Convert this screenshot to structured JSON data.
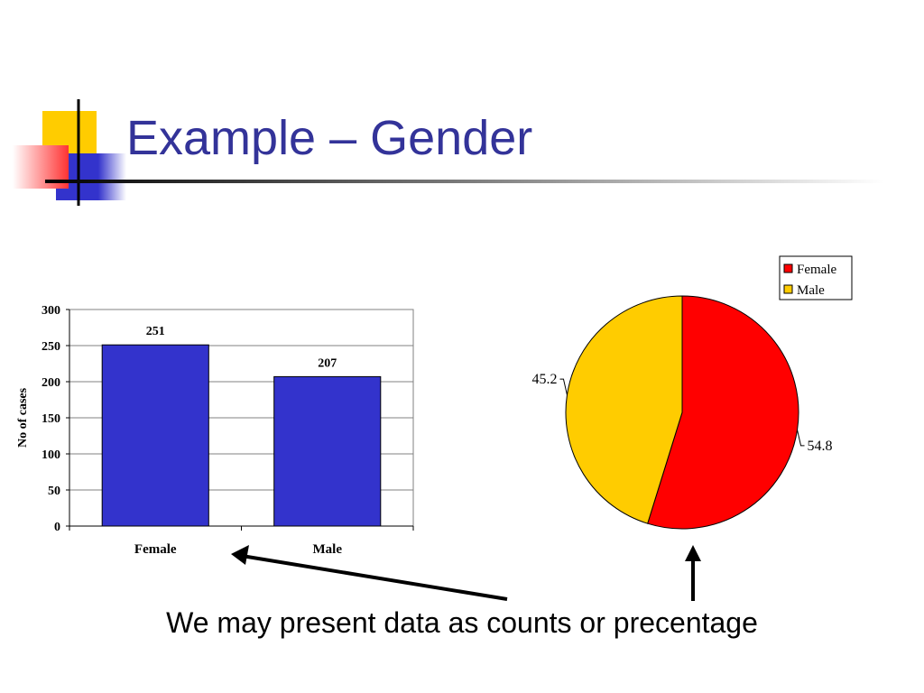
{
  "slide": {
    "title": "Example – Gender",
    "caption": "We may present data as counts or precentage"
  },
  "colors": {
    "title": "#333399",
    "bar": "#3333CC",
    "female": "#FF0000",
    "male": "#FFCC00",
    "deco_yellow": "#FFCC00",
    "deco_blue": "#3333CC",
    "deco_red": "#FF3333"
  },
  "chart_data": [
    {
      "type": "bar",
      "categories": [
        "Female",
        "Male"
      ],
      "values": [
        251,
        207
      ],
      "data_labels": [
        "251",
        "207"
      ],
      "title": "",
      "xlabel": "",
      "ylabel": "No of cases",
      "ylim": [
        0,
        300
      ],
      "yticks": [
        0,
        50,
        100,
        150,
        200,
        250,
        300
      ],
      "grid": true,
      "legend": "none"
    },
    {
      "type": "pie",
      "labels": [
        "Female",
        "Male"
      ],
      "values": [
        54.8,
        45.2
      ],
      "data_labels": [
        "54.8",
        "45.2"
      ],
      "title": "",
      "legend": "top-right",
      "legend_entries": [
        "Female",
        "Male"
      ]
    }
  ]
}
